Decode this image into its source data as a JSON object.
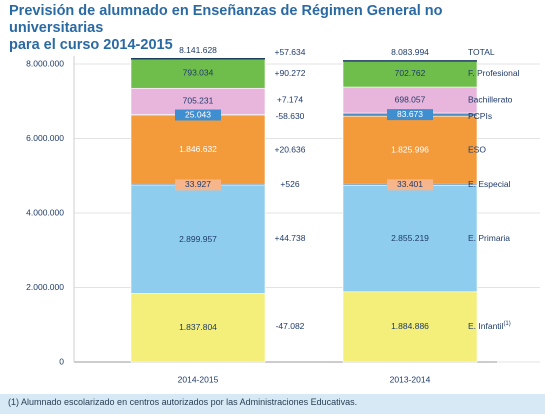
{
  "title_lines": [
    "Previsión de alumnado en Enseñanzas de Régimen General no universitarias",
    "para el curso 2014-2015"
  ],
  "footnote": "(1) Alumnado escolarizado en centros autorizados por las Administraciones Educativas.",
  "colors": {
    "title": "#2a6aa3",
    "axis_text": "#1f3b6a",
    "footnote_bg": "#d6e9f5"
  },
  "chart_data": {
    "type": "bar",
    "stacked": true,
    "ylim": [
      0,
      8000000
    ],
    "y_ticks": [
      {
        "value": 0,
        "label": "0"
      },
      {
        "value": 2000000,
        "label": "2.000.000"
      },
      {
        "value": 4000000,
        "label": "4.000.000"
      },
      {
        "value": 6000000,
        "label": "6.000.000"
      },
      {
        "value": 8000000,
        "label": "8.000.000"
      }
    ],
    "categories": [
      "2014-2015",
      "2013-2014"
    ],
    "totals": [
      "8.141.628",
      "8.083.994"
    ],
    "series": [
      {
        "name": "E. Infantil",
        "superscript": "(1)",
        "color": "#f3ef7a",
        "label_color": "#1f3b6a",
        "label_box": "",
        "values": [
          1837804,
          1884886
        ],
        "labels": [
          "1.837.804",
          "1.884.886"
        ],
        "difference": "-47.082"
      },
      {
        "name": "E. Primaria",
        "color": "#8fcdee",
        "label_color": "#1f3b6a",
        "label_box": "",
        "values": [
          2899957,
          2855219
        ],
        "labels": [
          "2.899.957",
          "2.855.219"
        ],
        "difference": "+44.738"
      },
      {
        "name": "E. Especial",
        "color": "#1f5a86",
        "label_color": "#1f3b6a",
        "label_box": "#f7b58c",
        "values": [
          33927,
          33401
        ],
        "labels": [
          "33.927",
          "33.401"
        ],
        "difference": "+526"
      },
      {
        "name": "ESO",
        "color": "#f39a3b",
        "label_color": "#ffffff",
        "label_box": "",
        "values": [
          1846632,
          1825996
        ],
        "labels": [
          "1.846.632",
          "1.825.996"
        ],
        "difference": "+20.636"
      },
      {
        "name": "PCPIs",
        "color": "#4f8fc3",
        "label_color": "#ffffff",
        "label_box": "#3f8fd0",
        "values": [
          25043,
          83673
        ],
        "labels": [
          "25.043",
          "83.673"
        ],
        "difference": "-58.630"
      },
      {
        "name": "Bachillerato",
        "color": "#e8b5dc",
        "label_color": "#1f3b6a",
        "label_box": "",
        "values": [
          705231,
          698057
        ],
        "labels": [
          "705.231",
          "698.057"
        ],
        "difference": "+7.174"
      },
      {
        "name": "F. Profesional",
        "color": "#6fbe4b",
        "label_color": "#1f3b6a",
        "label_box": "",
        "values": [
          793034,
          702762
        ],
        "labels": [
          "793.034",
          "702.762"
        ],
        "difference": "+90.272"
      }
    ],
    "total_label": "TOTAL",
    "total_difference": "+57.634"
  }
}
